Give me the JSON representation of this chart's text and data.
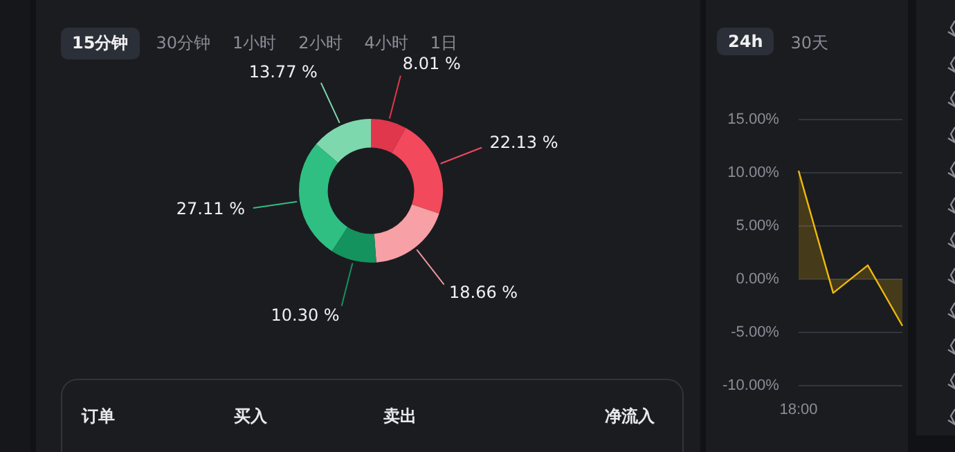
{
  "chart_data": [
    {
      "type": "donut",
      "categories": [
        null,
        null,
        null,
        null,
        null,
        null
      ],
      "values": [
        8.01,
        22.13,
        18.66,
        10.3,
        27.11,
        13.77
      ],
      "value_labels": [
        "8.01 %",
        "22.13 %",
        "18.66 %",
        "10.30 %",
        "27.11 %",
        "13.77 %"
      ],
      "colors": [
        "#e0374c",
        "#f2495c",
        "#f7a0a5",
        "#14935e",
        "#2fbf83",
        "#7ed8ad"
      ],
      "legend": false,
      "annotations": [
        "15分钟",
        "30分钟",
        "1小时",
        "2小时",
        "4小时",
        "1日",
        "订单",
        "买入",
        "卖出",
        "净流入"
      ]
    },
    {
      "type": "area",
      "categories": [
        "18:00",
        null,
        null,
        null
      ],
      "series": [
        {
          "color": "#f0b90b",
          "values": [
            10.2,
            -1.3,
            1.3,
            -4.4
          ]
        }
      ],
      "ylim": [
        -10,
        15
      ],
      "yticks": [
        {
          "value": -10,
          "label": "-10.00%"
        },
        {
          "value": -5,
          "label": "-5.00%"
        },
        {
          "value": 0,
          "label": "0.00%"
        },
        {
          "value": 5,
          "label": "5.00%"
        },
        {
          "value": 10,
          "label": "10.00%"
        },
        {
          "value": 15,
          "label": "15.00%"
        }
      ],
      "grid": "y",
      "legend": false,
      "annotations": [
        "24h",
        "30天"
      ]
    }
  ]
}
